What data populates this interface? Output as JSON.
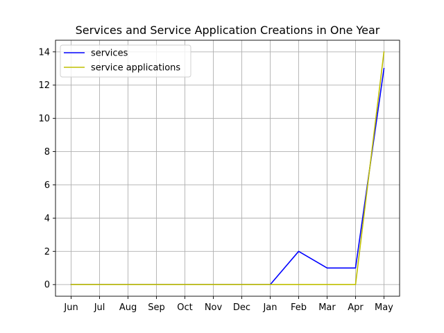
{
  "chart_data": {
    "type": "line",
    "title": "Services and Service Application Creations in One Year",
    "xlabel": "",
    "ylabel": "",
    "categories": [
      "Jun",
      "Jul",
      "Aug",
      "Sep",
      "Oct",
      "Nov",
      "Dec",
      "Jan",
      "Feb",
      "Mar",
      "Apr",
      "May"
    ],
    "ylim": [
      -0.7,
      14.7
    ],
    "yticks": [
      0,
      2,
      4,
      6,
      8,
      10,
      12,
      14
    ],
    "grid": true,
    "legend_position": "upper-left",
    "series": [
      {
        "name": "services",
        "color": "#0000ff",
        "values": [
          0,
          0,
          0,
          0,
          0,
          0,
          0,
          0,
          2,
          1,
          1,
          13
        ]
      },
      {
        "name": "service applications",
        "color": "#bfbf00",
        "values": [
          0,
          0,
          0,
          0,
          0,
          0,
          0,
          0,
          0,
          0,
          0,
          14
        ]
      }
    ]
  }
}
